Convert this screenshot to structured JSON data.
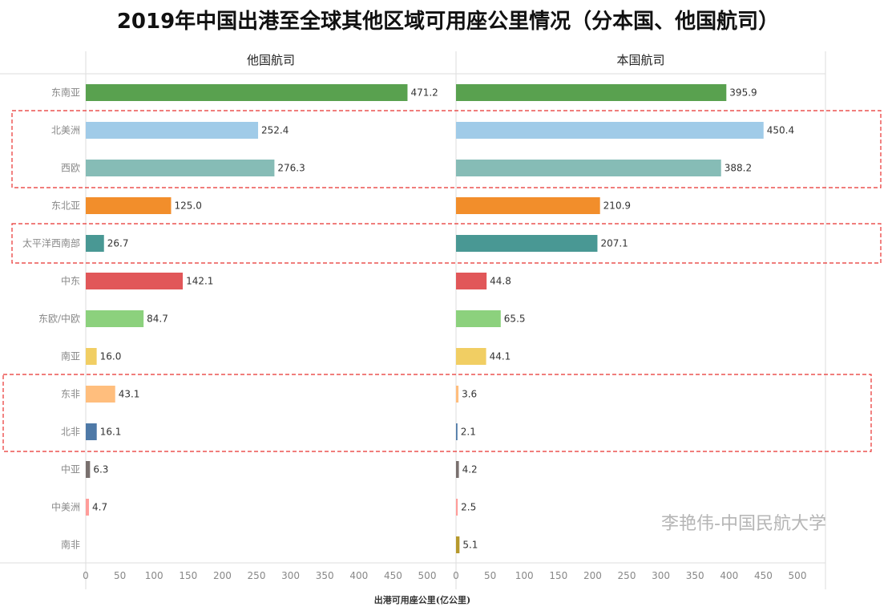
{
  "chart_data": {
    "type": "bar",
    "title": "2019年中国出港至全球其他区域可用座公里情况（分本国、他国航司）",
    "xlabel": "出港可用座公里(亿公里)",
    "xlim": [
      0,
      500
    ],
    "xticks": [
      0,
      50,
      100,
      150,
      200,
      250,
      300,
      350,
      400,
      450,
      500
    ],
    "orientation": "horizontal",
    "grid": false,
    "categories": [
      "东南亚",
      "北美洲",
      "西欧",
      "东北亚",
      "太平洋西南部",
      "中东",
      "东欧/中欧",
      "南亚",
      "东非",
      "北非",
      "中亚",
      "中美洲",
      "南非"
    ],
    "colors": [
      "#59a14f",
      "#a0cbe8",
      "#86bcb6",
      "#f28e2b",
      "#499894",
      "#e15759",
      "#8cd17d",
      "#f1ce63",
      "#ffbe7d",
      "#4e79a7",
      "#79706e",
      "#ff9d9a",
      "#b6992d"
    ],
    "series": [
      {
        "name": "他国航司",
        "values": [
          471.2,
          252.4,
          276.3,
          125.0,
          26.7,
          142.1,
          84.7,
          16.0,
          43.1,
          16.1,
          6.3,
          4.7,
          null
        ]
      },
      {
        "name": "本国航司",
        "values": [
          395.9,
          450.4,
          388.2,
          210.9,
          207.1,
          44.8,
          65.5,
          44.1,
          3.6,
          2.1,
          4.2,
          2.5,
          5.1
        ]
      }
    ],
    "value_labels": [
      [
        "471.2",
        "252.4",
        "276.3",
        "125.0",
        "26.7",
        "142.1",
        "84.7",
        "16.0",
        "43.1",
        "16.1",
        "6.3",
        "4.7",
        ""
      ],
      [
        "395.9",
        "450.4",
        "388.2",
        "210.9",
        "207.1",
        "44.8",
        "65.5",
        "44.1",
        "3.6",
        "2.1",
        "4.2",
        "2.5",
        "5.1"
      ]
    ],
    "highlight_groups": [
      [
        "北美洲",
        "西欧"
      ],
      [
        "太平洋西南部"
      ],
      [
        "东非",
        "北非"
      ]
    ],
    "highlight_color": "#e8312f",
    "watermark": "李艳伟-中国民航大学"
  }
}
